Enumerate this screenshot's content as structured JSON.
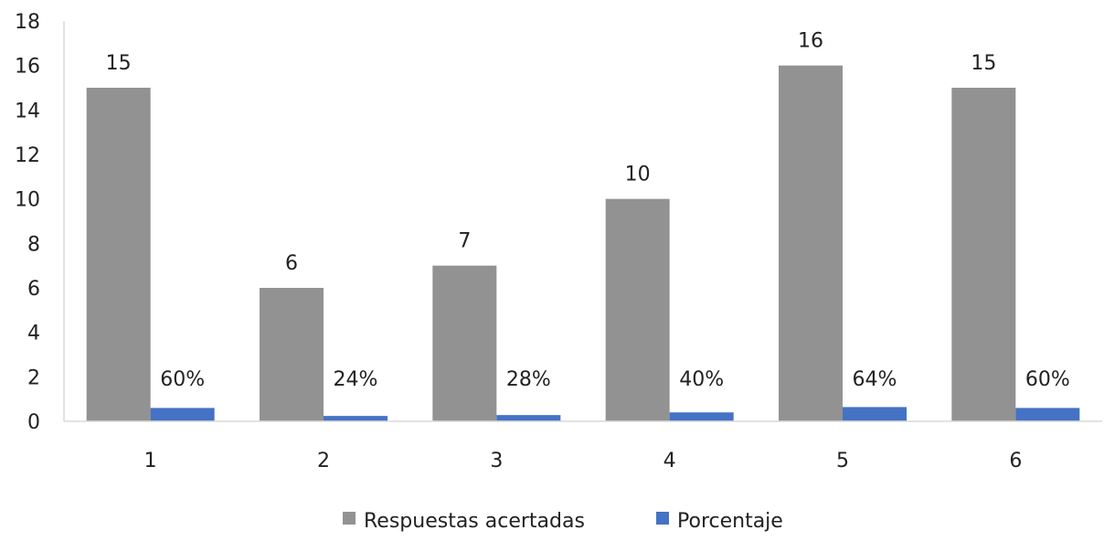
{
  "chart_data": {
    "type": "bar",
    "categories": [
      "1",
      "2",
      "3",
      "4",
      "5",
      "6"
    ],
    "series": [
      {
        "name": "Respuestas acertadas",
        "values": [
          15,
          6,
          7,
          10,
          16,
          15
        ],
        "labels": [
          "15",
          "6",
          "7",
          "10",
          "16",
          "15"
        ],
        "color": "#929292"
      },
      {
        "name": "Porcentaje",
        "values": [
          0.6,
          0.24,
          0.28,
          0.4,
          0.64,
          0.6
        ],
        "labels": [
          "60%",
          "24%",
          "28%",
          "40%",
          "64%",
          "60%"
        ],
        "color": "#4472c4"
      }
    ],
    "yticks": [
      "0",
      "2",
      "4",
      "6",
      "8",
      "10",
      "12",
      "14",
      "16",
      "18"
    ],
    "ylim": [
      0,
      18
    ],
    "grid": false,
    "legend": "bottom"
  }
}
